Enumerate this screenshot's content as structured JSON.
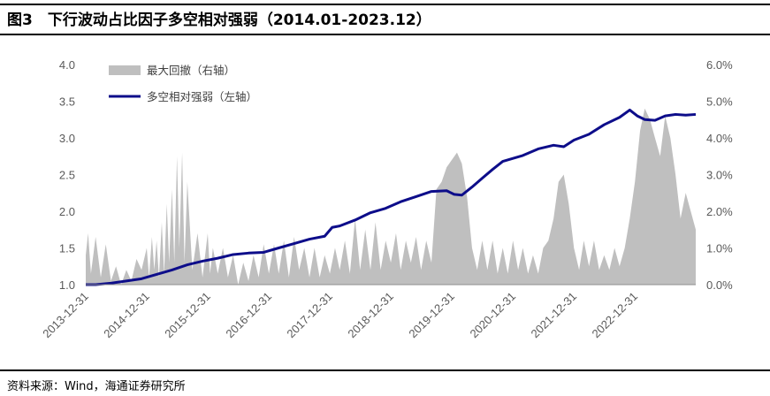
{
  "title": "图3　下行波动占比因子多空相对强弱（2014.01-2023.12）",
  "source": "资料来源：Wind，海通证券研究所",
  "colors": {
    "line": "#0d0d8a",
    "area": "#bfbfbf",
    "axis_text": "#595959"
  },
  "chart_data": {
    "type": "line+area",
    "title": "",
    "legend_position": "top-left",
    "x_tick_labels": [
      "2013-12-31",
      "2014-12-31",
      "2015-12-31",
      "2016-12-31",
      "2017-12-31",
      "2018-12-31",
      "2019-12-31",
      "2020-12-31",
      "2021-12-31",
      "2022-12-31"
    ],
    "y_left": {
      "range": [
        1.0,
        4.0
      ],
      "ticks": [
        "1.0",
        "1.5",
        "2.0",
        "2.5",
        "3.0",
        "3.5",
        "4.0"
      ]
    },
    "y_right": {
      "range": [
        0,
        0.06
      ],
      "ticks": [
        "0.0%",
        "1.0%",
        "2.0%",
        "3.0%",
        "4.0%",
        "5.0%",
        "6.0%"
      ]
    },
    "series": [
      {
        "name": "最大回撤（右轴）",
        "kind": "area",
        "axis": "right",
        "points": [
          [
            "2014-01-01",
            0.008
          ],
          [
            "2014-01-15",
            0.014
          ],
          [
            "2014-02-01",
            0.003
          ],
          [
            "2014-03-01",
            0.013
          ],
          [
            "2014-04-01",
            0.002
          ],
          [
            "2014-05-01",
            0.011
          ],
          [
            "2014-06-01",
            0.001
          ],
          [
            "2014-07-01",
            0.005
          ],
          [
            "2014-08-01",
            0.0
          ],
          [
            "2014-09-01",
            0.004
          ],
          [
            "2014-10-01",
            0.001
          ],
          [
            "2014-11-01",
            0.007
          ],
          [
            "2014-12-01",
            0.004
          ],
          [
            "2015-01-01",
            0.01
          ],
          [
            "2015-01-15",
            0.002
          ],
          [
            "2015-02-01",
            0.013
          ],
          [
            "2015-02-15",
            0.004
          ],
          [
            "2015-03-01",
            0.012
          ],
          [
            "2015-03-15",
            0.002
          ],
          [
            "2015-04-01",
            0.017
          ],
          [
            "2015-04-15",
            0.003
          ],
          [
            "2015-05-01",
            0.022
          ],
          [
            "2015-05-15",
            0.006
          ],
          [
            "2015-06-01",
            0.026
          ],
          [
            "2015-06-15",
            0.006
          ],
          [
            "2015-07-01",
            0.035
          ],
          [
            "2015-07-15",
            0.01
          ],
          [
            "2015-08-01",
            0.036
          ],
          [
            "2015-08-15",
            0.006
          ],
          [
            "2015-09-01",
            0.028
          ],
          [
            "2015-10-01",
            0.004
          ],
          [
            "2015-11-01",
            0.014
          ],
          [
            "2015-12-01",
            0.002
          ],
          [
            "2016-01-01",
            0.014
          ],
          [
            "2016-01-15",
            0.003
          ],
          [
            "2016-02-01",
            0.01
          ],
          [
            "2016-03-01",
            0.003
          ],
          [
            "2016-04-01",
            0.01
          ],
          [
            "2016-05-01",
            0.002
          ],
          [
            "2016-06-01",
            0.008
          ],
          [
            "2016-07-01",
            0.0
          ],
          [
            "2016-08-01",
            0.006
          ],
          [
            "2016-09-01",
            0.001
          ],
          [
            "2016-10-01",
            0.008
          ],
          [
            "2016-11-01",
            0.002
          ],
          [
            "2016-12-01",
            0.011
          ],
          [
            "2017-01-01",
            0.003
          ],
          [
            "2017-02-01",
            0.011
          ],
          [
            "2017-03-01",
            0.003
          ],
          [
            "2017-04-01",
            0.012
          ],
          [
            "2017-05-01",
            0.002
          ],
          [
            "2017-06-01",
            0.013
          ],
          [
            "2017-07-01",
            0.004
          ],
          [
            "2017-08-01",
            0.01
          ],
          [
            "2017-09-01",
            0.002
          ],
          [
            "2017-10-01",
            0.01
          ],
          [
            "2017-11-01",
            0.002
          ],
          [
            "2017-12-01",
            0.008
          ],
          [
            "2018-01-01",
            0.003
          ],
          [
            "2018-02-01",
            0.01
          ],
          [
            "2018-03-01",
            0.004
          ],
          [
            "2018-04-01",
            0.012
          ],
          [
            "2018-05-01",
            0.003
          ],
          [
            "2018-06-01",
            0.018
          ],
          [
            "2018-07-01",
            0.004
          ],
          [
            "2018-08-01",
            0.015
          ],
          [
            "2018-09-01",
            0.004
          ],
          [
            "2018-10-01",
            0.017
          ],
          [
            "2018-11-01",
            0.004
          ],
          [
            "2018-12-01",
            0.012
          ],
          [
            "2019-01-01",
            0.006
          ],
          [
            "2019-02-01",
            0.014
          ],
          [
            "2019-03-01",
            0.004
          ],
          [
            "2019-04-01",
            0.012
          ],
          [
            "2019-05-01",
            0.006
          ],
          [
            "2019-06-01",
            0.013
          ],
          [
            "2019-07-01",
            0.004
          ],
          [
            "2019-08-01",
            0.012
          ],
          [
            "2019-09-01",
            0.006
          ],
          [
            "2019-10-01",
            0.026
          ],
          [
            "2019-11-01",
            0.028
          ],
          [
            "2019-12-01",
            0.032
          ],
          [
            "2020-01-01",
            0.034
          ],
          [
            "2020-02-01",
            0.036
          ],
          [
            "2020-03-01",
            0.033
          ],
          [
            "2020-04-01",
            0.024
          ],
          [
            "2020-05-01",
            0.01
          ],
          [
            "2020-06-01",
            0.004
          ],
          [
            "2020-07-01",
            0.012
          ],
          [
            "2020-08-01",
            0.004
          ],
          [
            "2020-09-01",
            0.012
          ],
          [
            "2020-10-01",
            0.003
          ],
          [
            "2020-11-01",
            0.01
          ],
          [
            "2020-12-01",
            0.003
          ],
          [
            "2021-01-01",
            0.012
          ],
          [
            "2021-02-01",
            0.004
          ],
          [
            "2021-03-01",
            0.01
          ],
          [
            "2021-04-01",
            0.003
          ],
          [
            "2021-05-01",
            0.008
          ],
          [
            "2021-06-01",
            0.003
          ],
          [
            "2021-07-01",
            0.01
          ],
          [
            "2021-08-01",
            0.012
          ],
          [
            "2021-09-01",
            0.018
          ],
          [
            "2021-10-01",
            0.028
          ],
          [
            "2021-11-01",
            0.03
          ],
          [
            "2021-12-01",
            0.022
          ],
          [
            "2022-01-01",
            0.01
          ],
          [
            "2022-02-01",
            0.004
          ],
          [
            "2022-03-01",
            0.012
          ],
          [
            "2022-04-01",
            0.005
          ],
          [
            "2022-05-01",
            0.012
          ],
          [
            "2022-06-01",
            0.004
          ],
          [
            "2022-07-01",
            0.008
          ],
          [
            "2022-08-01",
            0.004
          ],
          [
            "2022-09-01",
            0.01
          ],
          [
            "2022-10-01",
            0.005
          ],
          [
            "2022-11-01",
            0.01
          ],
          [
            "2022-12-01",
            0.018
          ],
          [
            "2023-01-01",
            0.028
          ],
          [
            "2023-02-01",
            0.042
          ],
          [
            "2023-03-01",
            0.048
          ],
          [
            "2023-04-01",
            0.045
          ],
          [
            "2023-05-01",
            0.04
          ],
          [
            "2023-06-01",
            0.035
          ],
          [
            "2023-07-01",
            0.046
          ],
          [
            "2023-08-01",
            0.04
          ],
          [
            "2023-09-01",
            0.03
          ],
          [
            "2023-10-01",
            0.018
          ],
          [
            "2023-11-01",
            0.025
          ],
          [
            "2023-12-01",
            0.02
          ],
          [
            "2023-12-31",
            0.015
          ]
        ]
      },
      {
        "name": "多空相对强弱（左轴）",
        "kind": "line",
        "axis": "left",
        "points": [
          [
            "2014-01-01",
            1.0
          ],
          [
            "2014-03-01",
            1.0
          ],
          [
            "2014-06-01",
            1.02
          ],
          [
            "2014-09-01",
            1.05
          ],
          [
            "2014-12-01",
            1.08
          ],
          [
            "2015-03-01",
            1.14
          ],
          [
            "2015-06-01",
            1.2
          ],
          [
            "2015-09-01",
            1.27
          ],
          [
            "2015-12-01",
            1.32
          ],
          [
            "2016-03-01",
            1.36
          ],
          [
            "2016-06-01",
            1.41
          ],
          [
            "2016-09-01",
            1.43
          ],
          [
            "2016-12-01",
            1.44
          ],
          [
            "2017-03-01",
            1.5
          ],
          [
            "2017-06-01",
            1.56
          ],
          [
            "2017-09-01",
            1.62
          ],
          [
            "2017-12-01",
            1.66
          ],
          [
            "2018-01-15",
            1.78
          ],
          [
            "2018-03-01",
            1.8
          ],
          [
            "2018-06-01",
            1.88
          ],
          [
            "2018-09-01",
            1.98
          ],
          [
            "2018-12-01",
            2.04
          ],
          [
            "2019-03-01",
            2.13
          ],
          [
            "2019-06-01",
            2.2
          ],
          [
            "2019-09-01",
            2.27
          ],
          [
            "2019-12-01",
            2.28
          ],
          [
            "2020-01-15",
            2.23
          ],
          [
            "2020-03-01",
            2.22
          ],
          [
            "2020-05-01",
            2.33
          ],
          [
            "2020-07-01",
            2.45
          ],
          [
            "2020-09-01",
            2.57
          ],
          [
            "2020-11-01",
            2.68
          ],
          [
            "2021-01-01",
            2.72
          ],
          [
            "2021-03-01",
            2.76
          ],
          [
            "2021-06-01",
            2.85
          ],
          [
            "2021-09-01",
            2.9
          ],
          [
            "2021-11-01",
            2.88
          ],
          [
            "2022-01-01",
            2.97
          ],
          [
            "2022-04-01",
            3.05
          ],
          [
            "2022-07-01",
            3.18
          ],
          [
            "2022-10-01",
            3.28
          ],
          [
            "2022-12-01",
            3.38
          ],
          [
            "2023-01-15",
            3.3
          ],
          [
            "2023-03-01",
            3.25
          ],
          [
            "2023-05-01",
            3.24
          ],
          [
            "2023-07-01",
            3.3
          ],
          [
            "2023-09-01",
            3.32
          ],
          [
            "2023-11-01",
            3.31
          ],
          [
            "2023-12-31",
            3.32
          ]
        ]
      }
    ]
  }
}
